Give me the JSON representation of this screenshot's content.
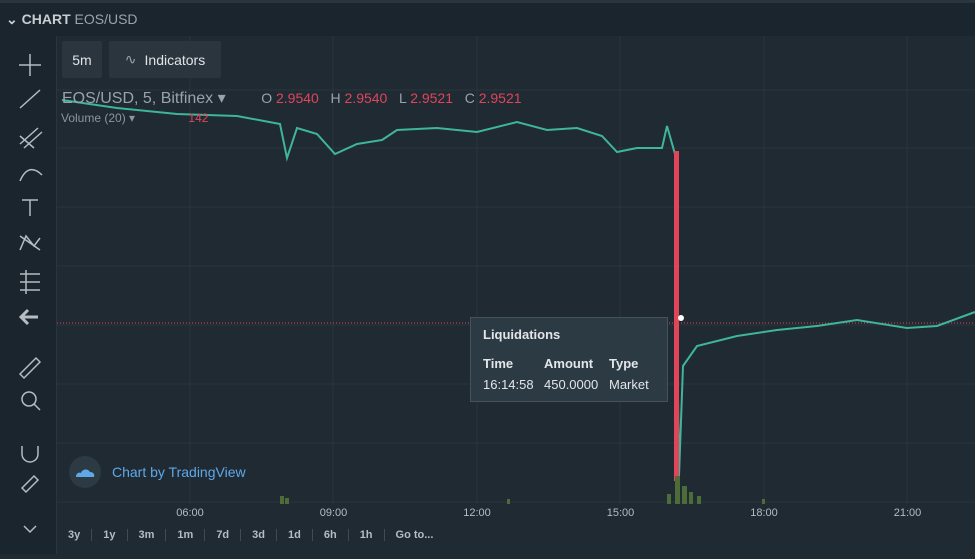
{
  "header": {
    "title": "CHART",
    "symbol": "EOS/USD"
  },
  "toolbar": {
    "interval": "5m",
    "indicators": "Indicators"
  },
  "legend": {
    "symbol": "EOS/USD, 5, Bitfinex",
    "open": {
      "label": "O",
      "value": "2.9540"
    },
    "high": {
      "label": "H",
      "value": "2.9540"
    },
    "low": {
      "label": "L",
      "value": "2.9521"
    },
    "close": {
      "label": "C",
      "value": "2.9521"
    }
  },
  "volume": {
    "label": "Volume (20)",
    "value": "142"
  },
  "tooltip": {
    "title": "Liquidations",
    "columns": [
      "Time",
      "Amount",
      "Type"
    ],
    "row": [
      "16:14:58",
      "450.0000",
      "Market"
    ]
  },
  "watermark": "Chart by TradingView",
  "time_axis": [
    "06:00",
    "09:00",
    "12:00",
    "15:00",
    "18:00",
    "21:00"
  ],
  "ranges": [
    "3y",
    "1y",
    "3m",
    "1m",
    "7d",
    "3d",
    "1d",
    "6h",
    "1h"
  ],
  "goto": "Go to..."
}
